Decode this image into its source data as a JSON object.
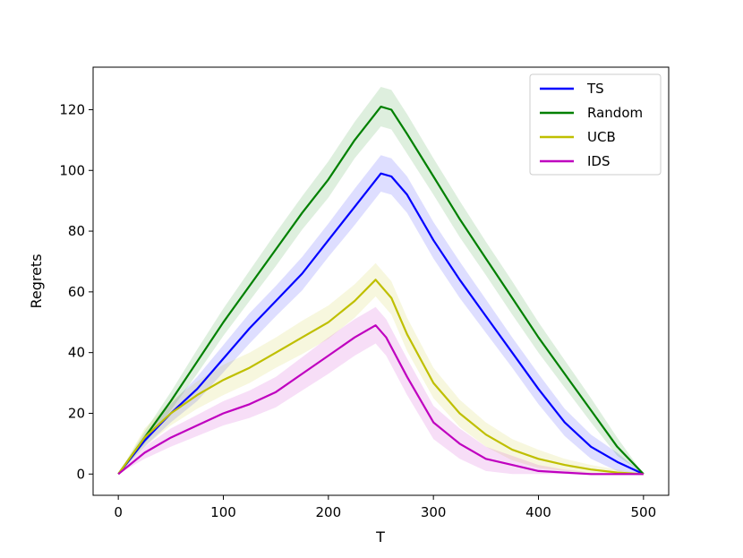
{
  "chart_data": {
    "type": "line",
    "title": "",
    "xlabel": "T",
    "ylabel": "Regrets",
    "xlim": [
      -24,
      524
    ],
    "ylim": [
      -7,
      134
    ],
    "xticks": [
      0,
      100,
      200,
      300,
      400,
      500
    ],
    "yticks": [
      0,
      20,
      40,
      60,
      80,
      100,
      120
    ],
    "grid": false,
    "legend_position": "top-right",
    "series": [
      {
        "name": "TS",
        "color": "#0000ff",
        "x": [
          0,
          25,
          50,
          75,
          100,
          125,
          150,
          175,
          200,
          225,
          250,
          260,
          275,
          300,
          325,
          350,
          375,
          400,
          425,
          450,
          475,
          500
        ],
        "values": [
          0,
          11,
          20,
          28,
          38,
          48,
          57,
          66,
          77,
          88,
          99,
          98,
          92,
          77,
          64,
          52,
          40,
          28,
          17,
          9,
          4,
          0
        ],
        "band": [
          0,
          2,
          3,
          4,
          4.5,
          5,
          5,
          5.5,
          5.5,
          6,
          6,
          6,
          6,
          6,
          6,
          5.5,
          5,
          5,
          4.5,
          4,
          3,
          0
        ]
      },
      {
        "name": "Random",
        "color": "#008000",
        "x": [
          0,
          25,
          50,
          75,
          100,
          125,
          150,
          175,
          200,
          225,
          250,
          260,
          275,
          300,
          325,
          350,
          375,
          400,
          425,
          450,
          475,
          500
        ],
        "values": [
          0,
          12,
          24,
          37,
          50,
          62,
          74,
          86,
          97,
          110,
          121,
          120,
          112,
          98,
          84,
          71,
          58,
          45,
          33,
          21,
          9,
          0
        ],
        "band": [
          0,
          2,
          3,
          4,
          4.5,
          5,
          5.5,
          5.5,
          6,
          6,
          6.5,
          6.5,
          6.5,
          6,
          6,
          5.5,
          5.5,
          5,
          4.5,
          4,
          3,
          0
        ]
      },
      {
        "name": "UCB",
        "color": "#bfbf00",
        "x": [
          0,
          25,
          50,
          75,
          100,
          125,
          150,
          175,
          200,
          225,
          245,
          260,
          275,
          300,
          325,
          350,
          375,
          400,
          425,
          450,
          475,
          500
        ],
        "values": [
          0,
          12,
          20,
          26,
          31,
          35,
          40,
          45,
          50,
          57,
          64,
          58,
          46,
          30,
          20,
          13,
          8,
          5,
          3,
          1.5,
          0.5,
          0
        ],
        "band": [
          0,
          3,
          4,
          4.5,
          5,
          5,
          5,
          5.5,
          5.5,
          5.5,
          5.5,
          5.5,
          5.5,
          5,
          4.5,
          4,
          3.5,
          3,
          2,
          1.5,
          1,
          0
        ]
      },
      {
        "name": "IDS",
        "color": "#bf00bf",
        "x": [
          0,
          25,
          50,
          75,
          100,
          125,
          150,
          175,
          200,
          225,
          245,
          255,
          275,
          300,
          325,
          350,
          375,
          400,
          425,
          450,
          475,
          500
        ],
        "values": [
          0,
          7,
          12,
          16,
          20,
          23,
          27,
          33,
          39,
          45,
          49,
          45,
          32,
          17,
          10,
          5,
          3,
          1,
          0.5,
          0,
          0,
          0
        ],
        "band": [
          0,
          2,
          3,
          3.5,
          4,
          4.5,
          5,
          5.5,
          6,
          6,
          6,
          6,
          6,
          5.5,
          5,
          4,
          3,
          2,
          1,
          0.5,
          0,
          0
        ]
      }
    ]
  }
}
